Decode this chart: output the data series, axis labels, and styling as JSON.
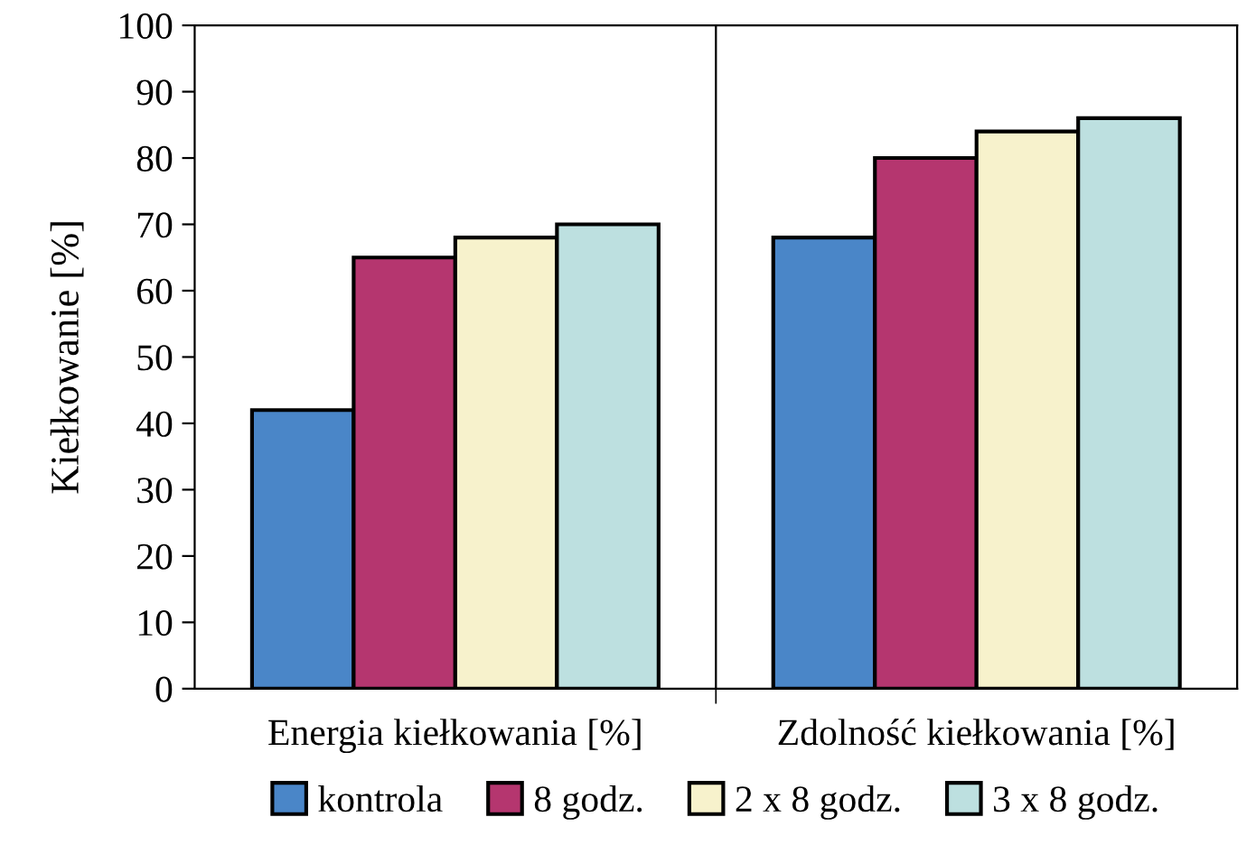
{
  "chart_data": {
    "type": "bar",
    "ylabel": "Kiełkowanie [%]",
    "categories": [
      "Energia kiełkowania [%]",
      "Zdolność kiełkowania [%]"
    ],
    "series": [
      {
        "name": "kontrola",
        "color": "#4a86c8",
        "values": [
          42,
          68
        ]
      },
      {
        "name": "8 godz.",
        "color": "#b5366f",
        "values": [
          65,
          80
        ]
      },
      {
        "name": "2 x 8 godz.",
        "color": "#f7f2cc",
        "values": [
          68,
          84
        ]
      },
      {
        "name": "3 x 8 godz.",
        "color": "#bde0e0",
        "values": [
          70,
          86
        ]
      }
    ],
    "ylim": [
      0,
      100
    ],
    "yticks": [
      0,
      10,
      20,
      30,
      40,
      50,
      60,
      70,
      80,
      90,
      100
    ],
    "grid": false,
    "legend": "bottom"
  }
}
